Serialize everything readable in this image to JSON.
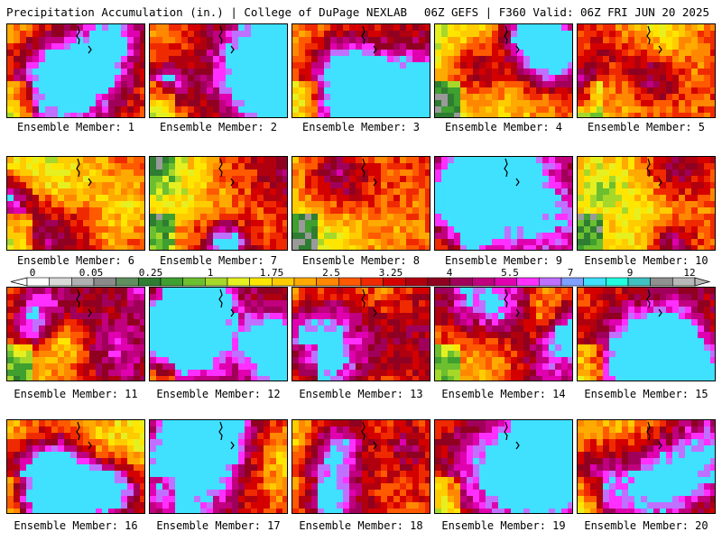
{
  "header": {
    "left_title": "Precipitation Accumulation (in.) | College of DuPage NEXLAB",
    "right_title": "06Z GEFS | F360 Valid: 06Z FRI JUN 20 2025"
  },
  "members": [
    {
      "label": "Ensemble Member: 1",
      "seed": 11,
      "wetness": 0.45
    },
    {
      "label": "Ensemble Member: 2",
      "seed": 23,
      "wetness": 0.6
    },
    {
      "label": "Ensemble Member: 3",
      "seed": 37,
      "wetness": 0.55
    },
    {
      "label": "Ensemble Member: 4",
      "seed": 41,
      "wetness": 0.3
    },
    {
      "label": "Ensemble Member: 5",
      "seed": 53,
      "wetness": 0.45
    },
    {
      "label": "Ensemble Member: 6",
      "seed": 67,
      "wetness": 0.45
    },
    {
      "label": "Ensemble Member: 7",
      "seed": 71,
      "wetness": 0.55
    },
    {
      "label": "Ensemble Member: 8",
      "seed": 83,
      "wetness": 0.5
    },
    {
      "label": "Ensemble Member: 9",
      "seed": 97,
      "wetness": 0.65
    },
    {
      "label": "Ensemble Member: 10",
      "seed": 101,
      "wetness": 0.45
    },
    {
      "label": "Ensemble Member: 11",
      "seed": 113,
      "wetness": 0.5
    },
    {
      "label": "Ensemble Member: 12",
      "seed": 127,
      "wetness": 0.65
    },
    {
      "label": "Ensemble Member: 13",
      "seed": 131,
      "wetness": 0.45
    },
    {
      "label": "Ensemble Member: 14",
      "seed": 149,
      "wetness": 0.55
    },
    {
      "label": "Ensemble Member: 15",
      "seed": 157,
      "wetness": 0.65
    },
    {
      "label": "Ensemble Member: 16",
      "seed": 163,
      "wetness": 0.45
    },
    {
      "label": "Ensemble Member: 17",
      "seed": 173,
      "wetness": 0.5
    },
    {
      "label": "Ensemble Member: 18",
      "seed": 181,
      "wetness": 0.5
    },
    {
      "label": "Ensemble Member: 19",
      "seed": 191,
      "wetness": 0.65
    },
    {
      "label": "Ensemble Member: 20",
      "seed": 199,
      "wetness": 0.4
    }
  ],
  "legend": {
    "tick_labels": [
      "0",
      "0.05",
      "0.25",
      "1",
      "1.75",
      "2.5",
      "3.25",
      "4",
      "5.5",
      "7",
      "9",
      "12"
    ],
    "colors": [
      "#ffffff",
      "#d9d9d9",
      "#b0b0b0",
      "#8a8a8a",
      "#5f8f5f",
      "#2e7d32",
      "#3f9f2f",
      "#6cbf2f",
      "#a6d82a",
      "#e6f020",
      "#ffe600",
      "#ffcc00",
      "#ffaa00",
      "#ff8800",
      "#ff5a00",
      "#f02a00",
      "#d40000",
      "#b00010",
      "#900020",
      "#a0005a",
      "#c0007e",
      "#e000b0",
      "#ff30ff",
      "#c070ff",
      "#80a0ff",
      "#40e0ff",
      "#20ffe0",
      "#40c0c0",
      "#909090",
      "#b8b8b8"
    ]
  }
}
